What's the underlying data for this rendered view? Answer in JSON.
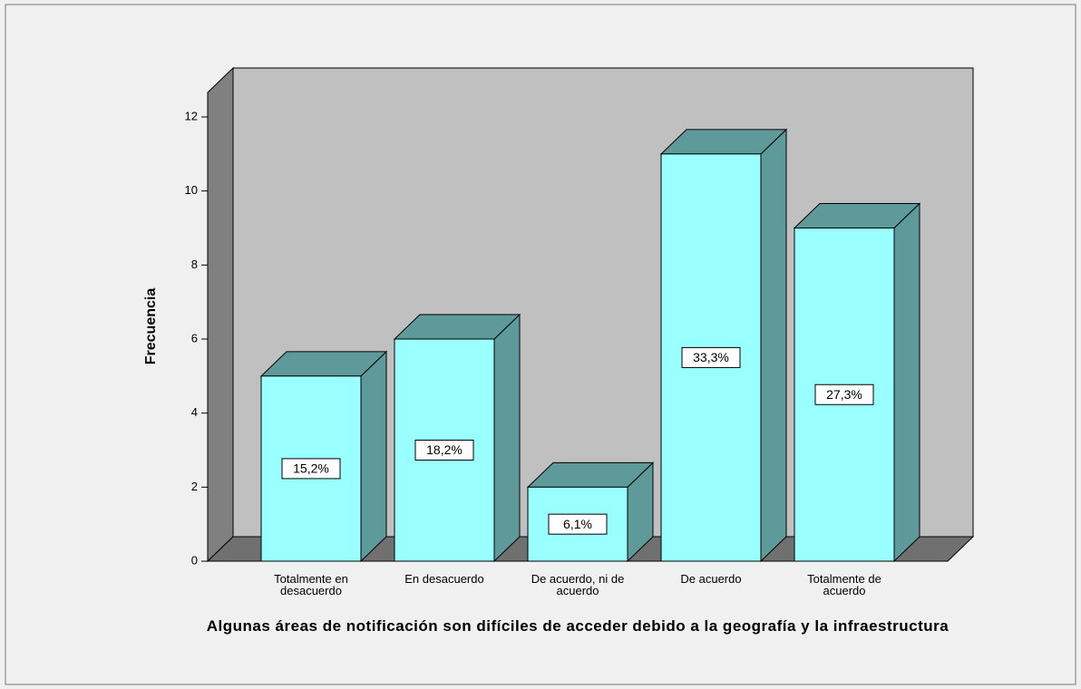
{
  "chart_data": {
    "type": "bar",
    "x_label": "Algunas áreas de notificación son difíciles de acceder debido a la geografía y la infraestructura",
    "y_label": "Frecuencia",
    "categories": [
      "Totalmente en desacuerdo",
      "En desacuerdo",
      "De acuerdo, ni de acuerdo",
      "De acuerdo",
      "Totalmente de acuerdo"
    ],
    "values": [
      5,
      6,
      2,
      11,
      9
    ],
    "percentages": [
      15.2,
      18.2,
      6.1,
      33.3,
      27.3
    ],
    "percentage_labels": [
      "15,2%",
      "18,2%",
      "6,1%",
      "33,3%",
      "27,3%"
    ],
    "color": "#99ffff",
    "ylim": [
      0,
      12
    ],
    "yticks": [
      0,
      2,
      4,
      6,
      8,
      10,
      12
    ],
    "grid": false
  }
}
